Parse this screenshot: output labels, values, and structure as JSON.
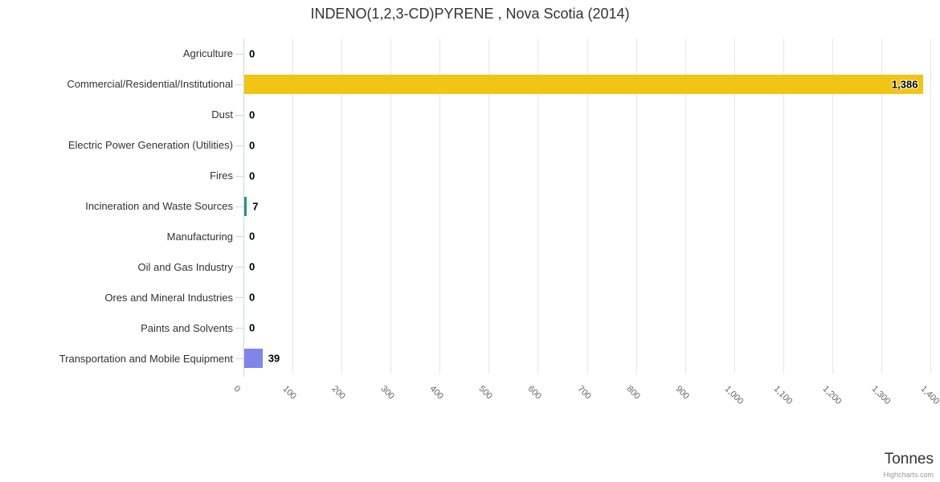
{
  "title": "INDENO(1,2,3-CD)PYRENE , Nova Scotia (2014)",
  "credit": "Highcharts.com",
  "chart_data": {
    "type": "bar",
    "orientation": "horizontal",
    "title": "INDENO(1,2,3-CD)PYRENE , Nova Scotia (2014)",
    "xlabel": "Tonnes",
    "ylabel": "",
    "categories": [
      "Agriculture",
      "Commercial/Residential/Institutional",
      "Dust",
      "Electric Power Generation (Utilities)",
      "Fires",
      "Incineration and Waste Sources",
      "Manufacturing",
      "Oil and Gas Industry",
      "Ores and Mineral Industries",
      "Paints and Solvents",
      "Transportation and Mobile Equipment"
    ],
    "values": [
      0,
      1386,
      0,
      0,
      0,
      7,
      0,
      0,
      0,
      0,
      39
    ],
    "value_labels": [
      "0",
      "1,386",
      "0",
      "0",
      "0",
      "7",
      "0",
      "0",
      "0",
      "0",
      "39"
    ],
    "bar_colors": [
      null,
      "#f0c514",
      null,
      null,
      null,
      "#2b908f",
      null,
      null,
      null,
      null,
      "#8085e9"
    ],
    "xlim": [
      0,
      1400
    ],
    "x_ticks": [
      0,
      100,
      200,
      300,
      400,
      500,
      600,
      700,
      800,
      900,
      1000,
      1100,
      1200,
      1300,
      1400
    ],
    "x_tick_labels": [
      "0",
      "100",
      "200",
      "300",
      "400",
      "500",
      "600",
      "700",
      "800",
      "900",
      "1,000",
      "1,100",
      "1,200",
      "1,300",
      "1,400"
    ],
    "grid": true,
    "legend": false,
    "style_colors": {
      "grid_line": "#e6e6e6",
      "axis_line": "#ccd6eb",
      "title_text": "#333333",
      "category_text": "#333333",
      "tick_text": "#666666",
      "value_text": "#000000",
      "credit_text": "#999999"
    }
  }
}
